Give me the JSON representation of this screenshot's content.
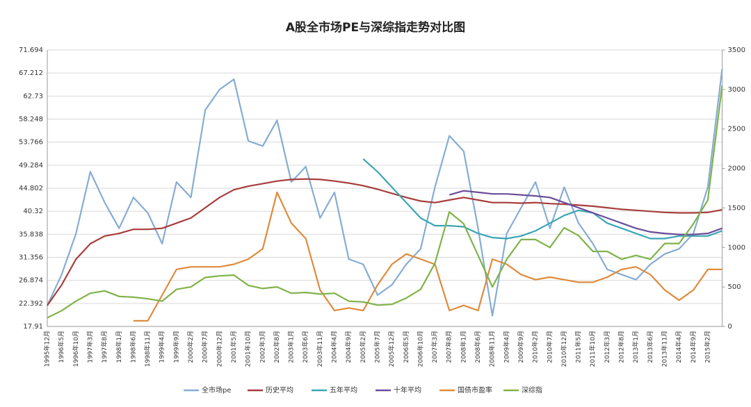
{
  "chart_data": {
    "type": "line",
    "title": "A股全市场PE与深综指走势对比图",
    "categories": [
      "1995年12月",
      "1996年5月",
      "1996年10月",
      "1997年3月",
      "1997年8月",
      "1998年1月",
      "1998年6月",
      "1998年11月",
      "1999年4月",
      "1999年9月",
      "2000年2月",
      "2000年7月",
      "2000年12月",
      "2001年5月",
      "2001年10月",
      "2002年3月",
      "2002年8月",
      "2003年1月",
      "2003年6月",
      "2003年11月",
      "2004年4月",
      "2004年9月",
      "2005年2月",
      "2005年7月",
      "2005年12月",
      "2006年5月",
      "2006年10月",
      "2007年3月",
      "2007年8月",
      "2008年1月",
      "2008年6月",
      "2008年11月",
      "2009年4月",
      "2009年9月",
      "2010年2月",
      "2010年7月",
      "2010年12月",
      "2011年5月",
      "2011年10月",
      "2012年3月",
      "2012年8月",
      "2013年1月",
      "2013年6月",
      "2013年11月",
      "2014年4月",
      "2014年9月",
      "2015年2月",
      null
    ],
    "ylim": [
      17.91,
      71.694
    ],
    "yticks": [
      17.91,
      22.392,
      26.874,
      31.356,
      35.838,
      40.32,
      44.802,
      49.284,
      53.766,
      58.248,
      62.73,
      67.212,
      71.694
    ],
    "y2lim": [
      0,
      3500
    ],
    "y2ticks": [
      0,
      500,
      1000,
      1500,
      2000,
      2500,
      3000,
      3500
    ],
    "grid": true,
    "legend": "bottom",
    "series": [
      {
        "name": "全市场pe",
        "color": "#86acd3",
        "values": [
          22,
          28,
          36,
          48,
          42,
          37,
          43,
          40,
          34,
          46,
          43,
          60,
          64,
          66,
          54,
          53,
          58,
          46,
          49,
          39,
          44,
          31,
          30,
          24,
          26,
          30,
          33,
          45,
          55,
          52,
          37,
          20,
          36,
          41,
          46,
          37,
          45,
          38,
          34,
          29,
          28,
          27,
          30,
          32,
          33,
          36,
          45,
          68
        ]
      },
      {
        "name": "历史平均",
        "color": "#a83c3c",
        "values": [
          22,
          26,
          31,
          34,
          35.5,
          36,
          36.8,
          36.8,
          37,
          38,
          39,
          41,
          43,
          44.5,
          45.2,
          45.7,
          46.2,
          46.5,
          46.6,
          46.5,
          46.2,
          45.8,
          45.3,
          44.6,
          43.8,
          43,
          42.3,
          42,
          42.5,
          43,
          42.5,
          42,
          42,
          41.9,
          42,
          41.8,
          41.7,
          41.5,
          41.3,
          41,
          40.7,
          40.5,
          40.3,
          40.1,
          40,
          40,
          40.1,
          40.6
        ]
      },
      {
        "name": "五年平均",
        "color": "#3aa5b5",
        "values": [
          null,
          null,
          null,
          null,
          null,
          null,
          null,
          null,
          null,
          null,
          null,
          null,
          null,
          null,
          null,
          null,
          null,
          null,
          null,
          null,
          null,
          null,
          50.5,
          48,
          45,
          42,
          39,
          37.5,
          37.5,
          37.3,
          36,
          35.2,
          35,
          35.5,
          36.5,
          38,
          39.5,
          40.5,
          40,
          38,
          37,
          36,
          35,
          35,
          35.5,
          35.5,
          35.5,
          36.5
        ]
      },
      {
        "name": "十年平均",
        "color": "#6b4c9a",
        "values": [
          null,
          null,
          null,
          null,
          null,
          null,
          null,
          null,
          null,
          null,
          null,
          null,
          null,
          null,
          null,
          null,
          null,
          null,
          null,
          null,
          null,
          null,
          null,
          null,
          null,
          null,
          null,
          null,
          43.5,
          44.3,
          44,
          43.7,
          43.7,
          43.5,
          43.3,
          43,
          42,
          41,
          40,
          39,
          38,
          37,
          36.3,
          36,
          35.8,
          35.8,
          36,
          37
        ]
      },
      {
        "name": "国债市盈率",
        "color": "#e08a3c",
        "values": [
          null,
          null,
          null,
          null,
          null,
          null,
          19,
          19,
          24,
          29,
          29.5,
          29.5,
          29.5,
          30,
          31,
          33,
          44,
          38,
          35,
          25,
          21,
          21.5,
          21,
          26,
          30,
          32,
          31,
          30,
          21,
          22,
          21,
          31,
          30,
          28,
          27,
          27.5,
          27,
          26.5,
          26.5,
          27.5,
          29,
          29.5,
          28,
          25,
          23,
          25,
          29,
          29
        ]
      },
      {
        "name": "深综指",
        "color": "#7fb24a",
        "axis": "y2",
        "values": [
          110,
          200,
          320,
          420,
          450,
          380,
          370,
          350,
          320,
          470,
          500,
          620,
          640,
          650,
          520,
          480,
          500,
          420,
          430,
          410,
          420,
          320,
          310,
          270,
          280,
          360,
          470,
          800,
          1450,
          1300,
          900,
          500,
          850,
          1100,
          1100,
          1000,
          1250,
          1150,
          950,
          950,
          850,
          900,
          850,
          1050,
          1050,
          1300,
          1600,
          3050
        ]
      }
    ]
  }
}
